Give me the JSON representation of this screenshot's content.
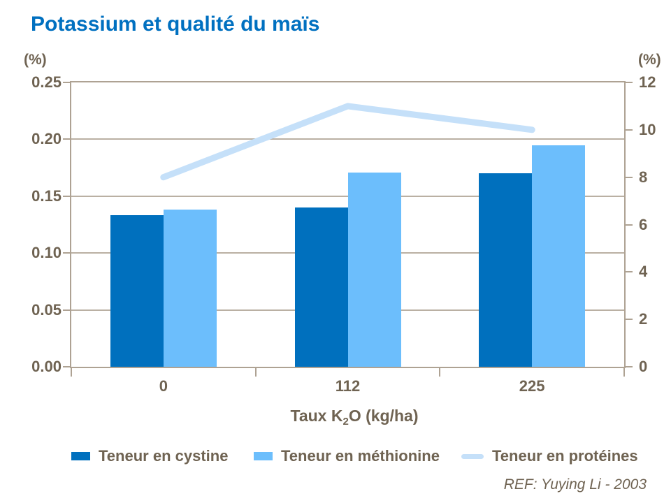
{
  "title": "Potassium et qualité du maïs",
  "left_axis": {
    "unit": "(%)",
    "tick_labels": [
      "0.25",
      "0.20",
      "0.15",
      "0.10",
      "0.05",
      "0.00"
    ]
  },
  "right_axis": {
    "unit": "(%)",
    "tick_labels": [
      "12",
      "10",
      "8",
      "6",
      "4",
      "2",
      "0"
    ]
  },
  "x_axis": {
    "tick_labels": [
      "0",
      "112",
      "225"
    ],
    "title_prefix": "Taux K",
    "title_sub": "2",
    "title_suffix": "O (kg/ha)"
  },
  "legend": {
    "items": [
      {
        "label": "Teneur en cystine",
        "swatch": "bar-swatch-dark-blue"
      },
      {
        "label": "Teneur en méthionine",
        "swatch": "bar-swatch-light-blue"
      },
      {
        "label": "Teneur en protéines",
        "swatch": "line-swatch-pale-blue"
      }
    ]
  },
  "footnote": "REF: Yuying Li - 2003",
  "colors": {
    "title": "#0070C0",
    "cystine_bar": "#0070BE",
    "methionine_bar": "#6CBEFC",
    "proteines_line": "#C5E0F9",
    "axis_text": "#6F6352",
    "axis_line": "#AEA293"
  },
  "chart_data": {
    "type": "bar",
    "title": "Potassium et qualité du maïs",
    "categories": [
      "0",
      "112",
      "225"
    ],
    "series": [
      {
        "name": "Teneur en cystine",
        "type": "bar",
        "axis": "left",
        "color": "#0070BE",
        "values": [
          0.133,
          0.14,
          0.17
        ]
      },
      {
        "name": "Teneur en méthionine",
        "type": "bar",
        "axis": "left",
        "color": "#6CBEFC",
        "values": [
          0.138,
          0.171,
          0.195
        ]
      },
      {
        "name": "Teneur en protéines",
        "type": "line",
        "axis": "right",
        "color": "#C5E0F9",
        "values": [
          8,
          11,
          10
        ]
      }
    ],
    "xlabel": "Taux K2O (kg/ha)",
    "left_ylabel": "(%)",
    "right_ylabel": "(%)",
    "left_ylim": [
      0,
      0.25
    ],
    "right_ylim": [
      0,
      12
    ],
    "left_tick_step": 0.05,
    "right_tick_step": 2,
    "grid": true,
    "legend_position": "bottom",
    "footnote": "REF: Yuying Li - 2003"
  }
}
